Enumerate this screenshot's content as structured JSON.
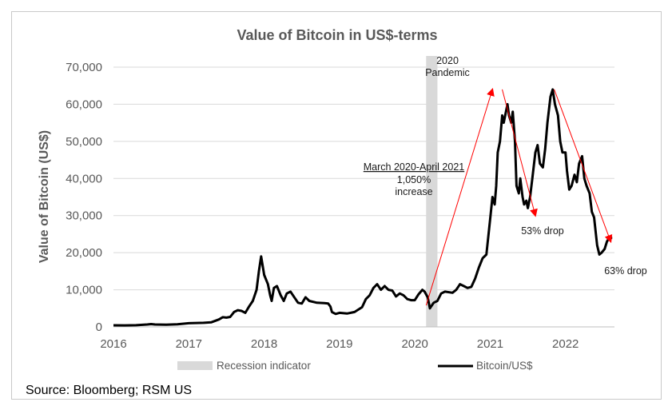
{
  "chart_data": {
    "type": "line",
    "title": "Value of Bitcoin in US$-terms",
    "ylabel": "Value of Bitcoin (US$)",
    "xlabel": "",
    "ylim": [
      0,
      70000
    ],
    "xlim": [
      2016.0,
      2022.65
    ],
    "yticks": [
      0,
      10000,
      20000,
      30000,
      40000,
      50000,
      60000,
      70000
    ],
    "ytick_labels": [
      "0",
      "10,000",
      "20,000",
      "30,000",
      "40,000",
      "50,000",
      "60,000",
      "70,000"
    ],
    "xticks": [
      2016,
      2017,
      2018,
      2019,
      2020,
      2021,
      2022
    ],
    "xtick_labels": [
      "2016",
      "2017",
      "2018",
      "2019",
      "2020",
      "2021",
      "2022"
    ],
    "grid": "horizontal",
    "legend_position": "bottom",
    "series": [
      {
        "name": "Bitcoin/US$",
        "color": "#000000",
        "points": [
          [
            2016.0,
            430
          ],
          [
            2016.15,
            420
          ],
          [
            2016.3,
            450
          ],
          [
            2016.45,
            650
          ],
          [
            2016.5,
            750
          ],
          [
            2016.55,
            650
          ],
          [
            2016.7,
            610
          ],
          [
            2016.85,
            700
          ],
          [
            2017.0,
            980
          ],
          [
            2017.1,
            1050
          ],
          [
            2017.2,
            1100
          ],
          [
            2017.3,
            1250
          ],
          [
            2017.4,
            2000
          ],
          [
            2017.45,
            2600
          ],
          [
            2017.5,
            2500
          ],
          [
            2017.55,
            2700
          ],
          [
            2017.6,
            4000
          ],
          [
            2017.65,
            4500
          ],
          [
            2017.7,
            4300
          ],
          [
            2017.75,
            3800
          ],
          [
            2017.8,
            5500
          ],
          [
            2017.85,
            7000
          ],
          [
            2017.9,
            10000
          ],
          [
            2017.93,
            15000
          ],
          [
            2017.96,
            19000
          ],
          [
            2018.0,
            14000
          ],
          [
            2018.05,
            11500
          ],
          [
            2018.08,
            8500
          ],
          [
            2018.1,
            7000
          ],
          [
            2018.13,
            10500
          ],
          [
            2018.17,
            11000
          ],
          [
            2018.22,
            8500
          ],
          [
            2018.26,
            7000
          ],
          [
            2018.3,
            9000
          ],
          [
            2018.35,
            9500
          ],
          [
            2018.4,
            8000
          ],
          [
            2018.45,
            6500
          ],
          [
            2018.5,
            6300
          ],
          [
            2018.55,
            8000
          ],
          [
            2018.6,
            7000
          ],
          [
            2018.7,
            6500
          ],
          [
            2018.8,
            6400
          ],
          [
            2018.85,
            6300
          ],
          [
            2018.88,
            5500
          ],
          [
            2018.9,
            4000
          ],
          [
            2018.95,
            3500
          ],
          [
            2019.0,
            3800
          ],
          [
            2019.1,
            3600
          ],
          [
            2019.2,
            4000
          ],
          [
            2019.3,
            5300
          ],
          [
            2019.35,
            7500
          ],
          [
            2019.4,
            8500
          ],
          [
            2019.45,
            10500
          ],
          [
            2019.5,
            11500
          ],
          [
            2019.55,
            10000
          ],
          [
            2019.6,
            11000
          ],
          [
            2019.65,
            10000
          ],
          [
            2019.7,
            9800
          ],
          [
            2019.75,
            8200
          ],
          [
            2019.8,
            9000
          ],
          [
            2019.85,
            8500
          ],
          [
            2019.9,
            7500
          ],
          [
            2019.95,
            7200
          ],
          [
            2020.0,
            7200
          ],
          [
            2020.05,
            8800
          ],
          [
            2020.1,
            10000
          ],
          [
            2020.13,
            9500
          ],
          [
            2020.17,
            8000
          ],
          [
            2020.2,
            5000
          ],
          [
            2020.25,
            6500
          ],
          [
            2020.3,
            7000
          ],
          [
            2020.35,
            9000
          ],
          [
            2020.4,
            9500
          ],
          [
            2020.5,
            9200
          ],
          [
            2020.55,
            10000
          ],
          [
            2020.6,
            11500
          ],
          [
            2020.65,
            11000
          ],
          [
            2020.7,
            10500
          ],
          [
            2020.75,
            10800
          ],
          [
            2020.8,
            13000
          ],
          [
            2020.85,
            16000
          ],
          [
            2020.9,
            18500
          ],
          [
            2020.95,
            19500
          ],
          [
            2021.0,
            29000
          ],
          [
            2021.03,
            35000
          ],
          [
            2021.06,
            33000
          ],
          [
            2021.08,
            38000
          ],
          [
            2021.1,
            47000
          ],
          [
            2021.13,
            50000
          ],
          [
            2021.16,
            57000
          ],
          [
            2021.18,
            55000
          ],
          [
            2021.21,
            58000
          ],
          [
            2021.23,
            60000
          ],
          [
            2021.25,
            57000
          ],
          [
            2021.28,
            55000
          ],
          [
            2021.3,
            58000
          ],
          [
            2021.33,
            50000
          ],
          [
            2021.35,
            38000
          ],
          [
            2021.38,
            36000
          ],
          [
            2021.4,
            40000
          ],
          [
            2021.43,
            35000
          ],
          [
            2021.45,
            33000
          ],
          [
            2021.48,
            34000
          ],
          [
            2021.5,
            32000
          ],
          [
            2021.53,
            35000
          ],
          [
            2021.56,
            40000
          ],
          [
            2021.6,
            47000
          ],
          [
            2021.63,
            49000
          ],
          [
            2021.66,
            44000
          ],
          [
            2021.7,
            43000
          ],
          [
            2021.73,
            48000
          ],
          [
            2021.76,
            55000
          ],
          [
            2021.8,
            62000
          ],
          [
            2021.83,
            64000
          ],
          [
            2021.86,
            60000
          ],
          [
            2021.9,
            57000
          ],
          [
            2021.93,
            50000
          ],
          [
            2021.96,
            47000
          ],
          [
            2022.0,
            47000
          ],
          [
            2022.02,
            42000
          ],
          [
            2022.05,
            37000
          ],
          [
            2022.08,
            38000
          ],
          [
            2022.12,
            41000
          ],
          [
            2022.15,
            39000
          ],
          [
            2022.18,
            44000
          ],
          [
            2022.22,
            46000
          ],
          [
            2022.25,
            40000
          ],
          [
            2022.28,
            38000
          ],
          [
            2022.32,
            36000
          ],
          [
            2022.35,
            31000
          ],
          [
            2022.38,
            29500
          ],
          [
            2022.42,
            22000
          ],
          [
            2022.45,
            19500
          ],
          [
            2022.48,
            20000
          ],
          [
            2022.52,
            21000
          ],
          [
            2022.55,
            23000
          ],
          [
            2022.58,
            24000
          ],
          [
            2022.62,
            24000
          ]
        ]
      }
    ],
    "shaded_regions": [
      {
        "name": "Recession indicator",
        "x_start": 2020.15,
        "x_end": 2020.3,
        "color": "#d9d9d9"
      }
    ],
    "annotations": {
      "pandemic_line1": "2020",
      "pandemic_line2": "Pandemic",
      "increase_line1": "March 2020-April 2021",
      "increase_line2": "1,050%",
      "increase_line3": "increase",
      "drop1": "53% drop",
      "drop2": "63% drop"
    },
    "trend_arrows": [
      {
        "from": [
          2020.15,
          5800
        ],
        "to": [
          2021.03,
          64000
        ],
        "color": "#ff0000"
      },
      {
        "from": [
          2021.16,
          64000
        ],
        "to": [
          2021.6,
          30000
        ],
        "color": "#ff0000"
      },
      {
        "from": [
          2021.85,
          64000
        ],
        "to": [
          2022.6,
          23000
        ],
        "color": "#ff0000"
      }
    ],
    "legend": [
      {
        "label": "Recession indicator",
        "type": "band",
        "color": "#d9d9d9"
      },
      {
        "label": "Bitcoin/US$",
        "type": "line",
        "color": "#000000"
      }
    ]
  },
  "source": "Source: Bloomberg; RSM US"
}
